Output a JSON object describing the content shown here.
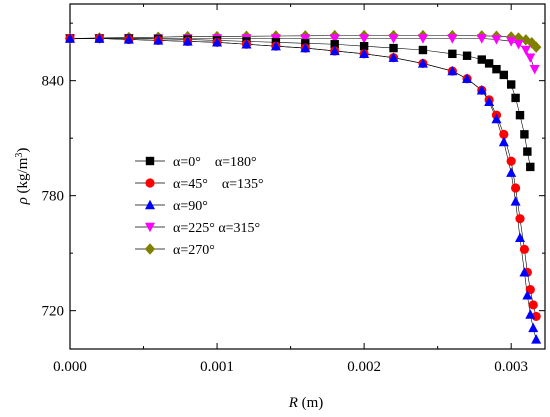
{
  "chart_data": {
    "type": "scatter",
    "title": "",
    "xlabel_symbol": "R",
    "xlabel_unit": "(m)",
    "ylabel_symbol": "ρ",
    "ylabel_unit_prefix": "(kg/m",
    "ylabel_unit_exp": "3",
    "ylabel_unit_suffix": ")",
    "xlim": [
      0.0,
      0.00323
    ],
    "ylim": [
      700,
      880
    ],
    "xticks": [
      0.0,
      0.001,
      0.002,
      0.003
    ],
    "xtick_labels": [
      "0.000",
      "0.001",
      "0.002",
      "0.003"
    ],
    "yticks": [
      720,
      780,
      840
    ],
    "ytick_labels": [
      "720",
      "780",
      "840"
    ],
    "grid": false,
    "legend_position": "center-left",
    "series": [
      {
        "name": "α=0°    α=180°",
        "marker": "square",
        "color": "#000000",
        "x": [
          0,
          0.0002,
          0.0004,
          0.0006,
          0.0008,
          0.001,
          0.0012,
          0.0014,
          0.0016,
          0.0018,
          0.002,
          0.0022,
          0.0024,
          0.0026,
          0.0027,
          0.0028,
          0.00285,
          0.0029,
          0.00295,
          0.003,
          0.00303,
          0.00306,
          0.00309,
          0.00311,
          0.00313
        ],
        "y": [
          862,
          862,
          862,
          861.8,
          861.5,
          861,
          860.5,
          860,
          859.5,
          859,
          858,
          857,
          856,
          854,
          853,
          851,
          849,
          846,
          843,
          838,
          831,
          822,
          812,
          803,
          795
        ]
      },
      {
        "name": "α=45°    α=135°",
        "marker": "circle",
        "color": "#ff0000",
        "x": [
          0,
          0.0002,
          0.0004,
          0.0006,
          0.0008,
          0.001,
          0.0012,
          0.0014,
          0.0016,
          0.0018,
          0.002,
          0.0022,
          0.0024,
          0.0026,
          0.0027,
          0.0028,
          0.00285,
          0.0029,
          0.00295,
          0.003,
          0.00303,
          0.00306,
          0.00309,
          0.00311,
          0.00313,
          0.00315,
          0.00317
        ],
        "y": [
          862,
          862,
          861.5,
          861,
          860.5,
          860,
          859,
          858,
          857,
          855.5,
          854,
          852,
          849,
          845,
          841,
          835,
          830,
          822,
          812,
          798,
          784,
          768,
          752,
          740,
          731,
          723,
          717
        ]
      },
      {
        "name": "α=90°",
        "marker": "triangle-up",
        "color": "#0000ff",
        "x": [
          0,
          0.0002,
          0.0004,
          0.0006,
          0.0008,
          0.001,
          0.0012,
          0.0014,
          0.0016,
          0.0018,
          0.002,
          0.0022,
          0.0024,
          0.0026,
          0.0027,
          0.0028,
          0.00285,
          0.0029,
          0.00295,
          0.003,
          0.00303,
          0.00306,
          0.00309,
          0.00311,
          0.00313,
          0.00315,
          0.00317
        ],
        "y": [
          862,
          862,
          861.5,
          861,
          860.5,
          860,
          859,
          858,
          857,
          855.5,
          854,
          852,
          849,
          845,
          841,
          835,
          829,
          820,
          808,
          792,
          777,
          758,
          740,
          728,
          718,
          711,
          705
        ]
      },
      {
        "name": "α=225° α=315°",
        "marker": "triangle-down",
        "color": "#ff00ff",
        "x": [
          0,
          0.0002,
          0.0004,
          0.0006,
          0.0008,
          0.001,
          0.0012,
          0.0014,
          0.0016,
          0.0018,
          0.002,
          0.0022,
          0.0024,
          0.0026,
          0.0028,
          0.0029,
          0.003,
          0.00305,
          0.0031,
          0.00313,
          0.00316
        ],
        "y": [
          862,
          862,
          862,
          862,
          862,
          862,
          862,
          862,
          862,
          862,
          862,
          862,
          862,
          862,
          862,
          861.5,
          860.5,
          859,
          856,
          852,
          846
        ]
      },
      {
        "name": "α=270°",
        "marker": "diamond",
        "color": "#808000",
        "x": [
          0,
          0.0002,
          0.0004,
          0.0006,
          0.0008,
          0.001,
          0.0012,
          0.0014,
          0.0016,
          0.0018,
          0.002,
          0.0022,
          0.0024,
          0.0026,
          0.0028,
          0.0029,
          0.003,
          0.00305,
          0.0031,
          0.00314,
          0.00317
        ],
        "y": [
          862,
          862.3,
          862.5,
          862.7,
          863,
          863,
          863.2,
          863.3,
          863.4,
          863.5,
          863.5,
          863.5,
          863.5,
          863.5,
          863.4,
          863.2,
          862.8,
          862.3,
          861.3,
          859.8,
          857.5
        ]
      }
    ]
  }
}
